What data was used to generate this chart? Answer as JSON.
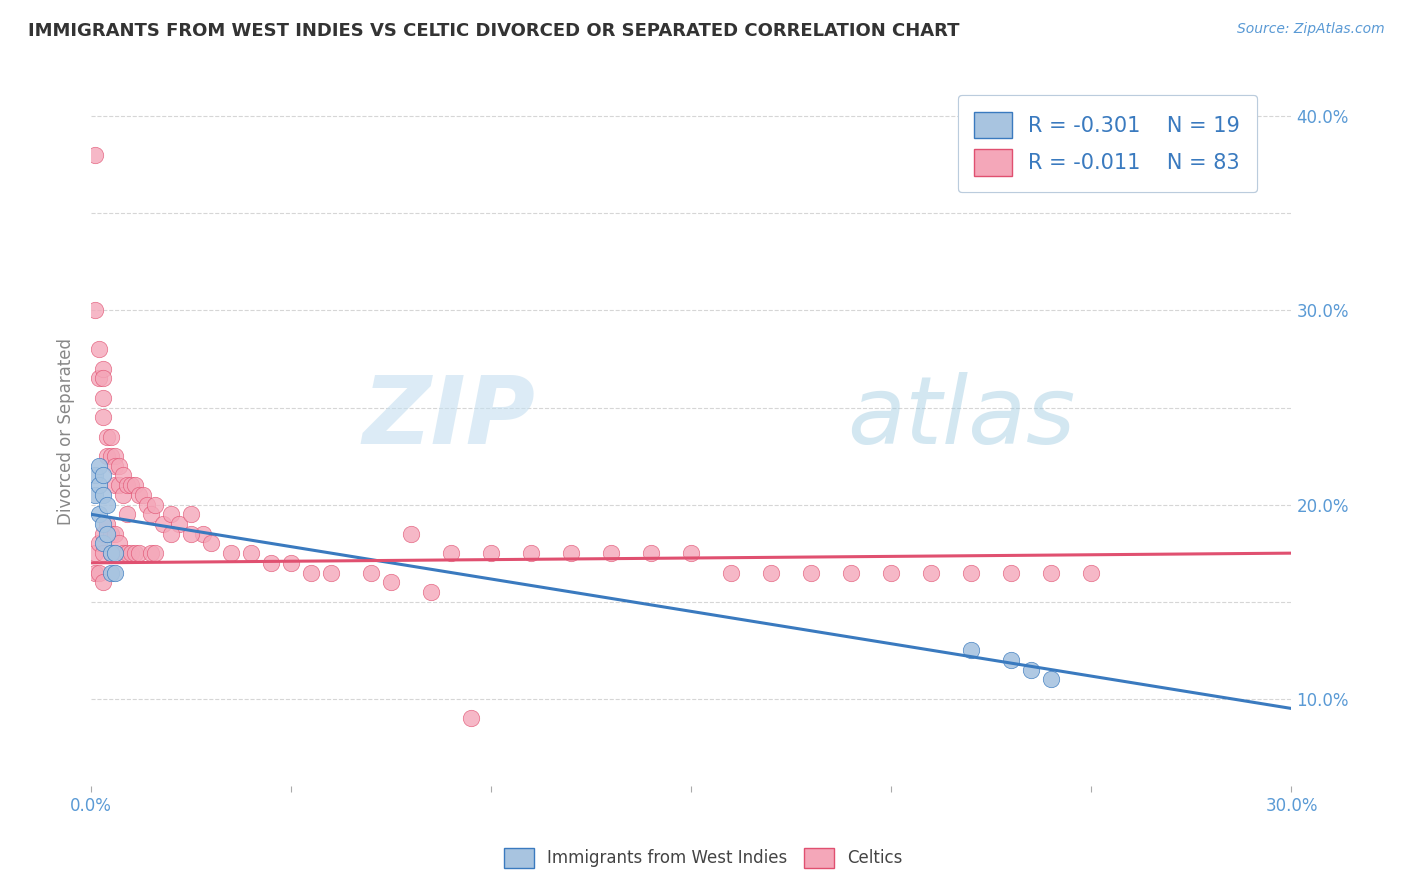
{
  "title": "IMMIGRANTS FROM WEST INDIES VS CELTIC DIVORCED OR SEPARATED CORRELATION CHART",
  "source_text": "Source: ZipAtlas.com",
  "watermark_zip": "ZIP",
  "watermark_atlas": "atlas",
  "ylabel": "Divorced or Separated",
  "xlim": [
    0.0,
    0.3
  ],
  "ylim": [
    0.055,
    0.42
  ],
  "xtick_pos": [
    0.0,
    0.05,
    0.1,
    0.15,
    0.2,
    0.25,
    0.3
  ],
  "xtick_labels": [
    "0.0%",
    "",
    "",
    "",
    "",
    "",
    "30.0%"
  ],
  "ytick_pos": [
    0.1,
    0.15,
    0.2,
    0.25,
    0.3,
    0.35,
    0.4
  ],
  "ytick_labels_right": [
    "10.0%",
    "",
    "20.0%",
    "",
    "30.0%",
    "",
    "40.0%"
  ],
  "legend_r1_val": "-0.301",
  "legend_n1_val": "19",
  "legend_r2_val": "-0.011",
  "legend_n2_val": "83",
  "color_blue": "#a8c4e0",
  "color_pink": "#f4a7b9",
  "line_color_blue": "#3a7abf",
  "line_color_pink": "#e05070",
  "title_color": "#333333",
  "axis_tick_color": "#5a9ad5",
  "legend_text_color": "#3a7abf",
  "grid_color": "#cccccc",
  "blue_scatter_x": [
    0.001,
    0.001,
    0.002,
    0.002,
    0.002,
    0.003,
    0.003,
    0.003,
    0.003,
    0.004,
    0.004,
    0.005,
    0.005,
    0.006,
    0.006,
    0.22,
    0.23,
    0.235,
    0.24
  ],
  "blue_scatter_y": [
    0.215,
    0.205,
    0.22,
    0.21,
    0.195,
    0.215,
    0.205,
    0.19,
    0.18,
    0.2,
    0.185,
    0.175,
    0.165,
    0.175,
    0.165,
    0.125,
    0.12,
    0.115,
    0.11
  ],
  "pink_scatter_x": [
    0.001,
    0.001,
    0.002,
    0.002,
    0.003,
    0.003,
    0.003,
    0.003,
    0.004,
    0.004,
    0.005,
    0.005,
    0.006,
    0.006,
    0.006,
    0.007,
    0.007,
    0.008,
    0.008,
    0.009,
    0.009,
    0.01,
    0.011,
    0.012,
    0.013,
    0.014,
    0.015,
    0.016,
    0.018,
    0.02,
    0.022,
    0.025,
    0.028,
    0.001,
    0.002,
    0.003,
    0.003,
    0.004,
    0.005,
    0.005,
    0.006,
    0.007,
    0.008,
    0.009,
    0.01,
    0.011,
    0.012,
    0.001,
    0.002,
    0.003,
    0.08,
    0.09,
    0.1,
    0.14,
    0.15,
    0.16,
    0.22,
    0.24,
    0.25,
    0.11,
    0.12,
    0.13,
    0.17,
    0.18,
    0.19,
    0.2,
    0.21,
    0.23,
    0.015,
    0.016,
    0.02,
    0.025,
    0.03,
    0.035,
    0.04,
    0.045,
    0.05,
    0.055,
    0.06,
    0.07,
    0.075,
    0.085,
    0.095
  ],
  "pink_scatter_y": [
    0.38,
    0.3,
    0.28,
    0.265,
    0.27,
    0.265,
    0.255,
    0.245,
    0.235,
    0.225,
    0.235,
    0.225,
    0.225,
    0.22,
    0.21,
    0.22,
    0.21,
    0.215,
    0.205,
    0.21,
    0.195,
    0.21,
    0.21,
    0.205,
    0.205,
    0.2,
    0.195,
    0.2,
    0.19,
    0.195,
    0.19,
    0.195,
    0.185,
    0.175,
    0.18,
    0.185,
    0.175,
    0.19,
    0.185,
    0.175,
    0.185,
    0.18,
    0.175,
    0.175,
    0.175,
    0.175,
    0.175,
    0.165,
    0.165,
    0.16,
    0.185,
    0.175,
    0.175,
    0.175,
    0.175,
    0.165,
    0.165,
    0.165,
    0.165,
    0.175,
    0.175,
    0.175,
    0.165,
    0.165,
    0.165,
    0.165,
    0.165,
    0.165,
    0.175,
    0.175,
    0.185,
    0.185,
    0.18,
    0.175,
    0.175,
    0.17,
    0.17,
    0.165,
    0.165,
    0.165,
    0.16,
    0.155,
    0.09
  ],
  "blue_line_x": [
    0.0,
    0.3
  ],
  "blue_line_y": [
    0.195,
    0.095
  ],
  "pink_line_x": [
    0.0,
    0.3
  ],
  "pink_line_y": [
    0.17,
    0.175
  ],
  "dpi": 100,
  "figsize": [
    14.06,
    8.92
  ]
}
